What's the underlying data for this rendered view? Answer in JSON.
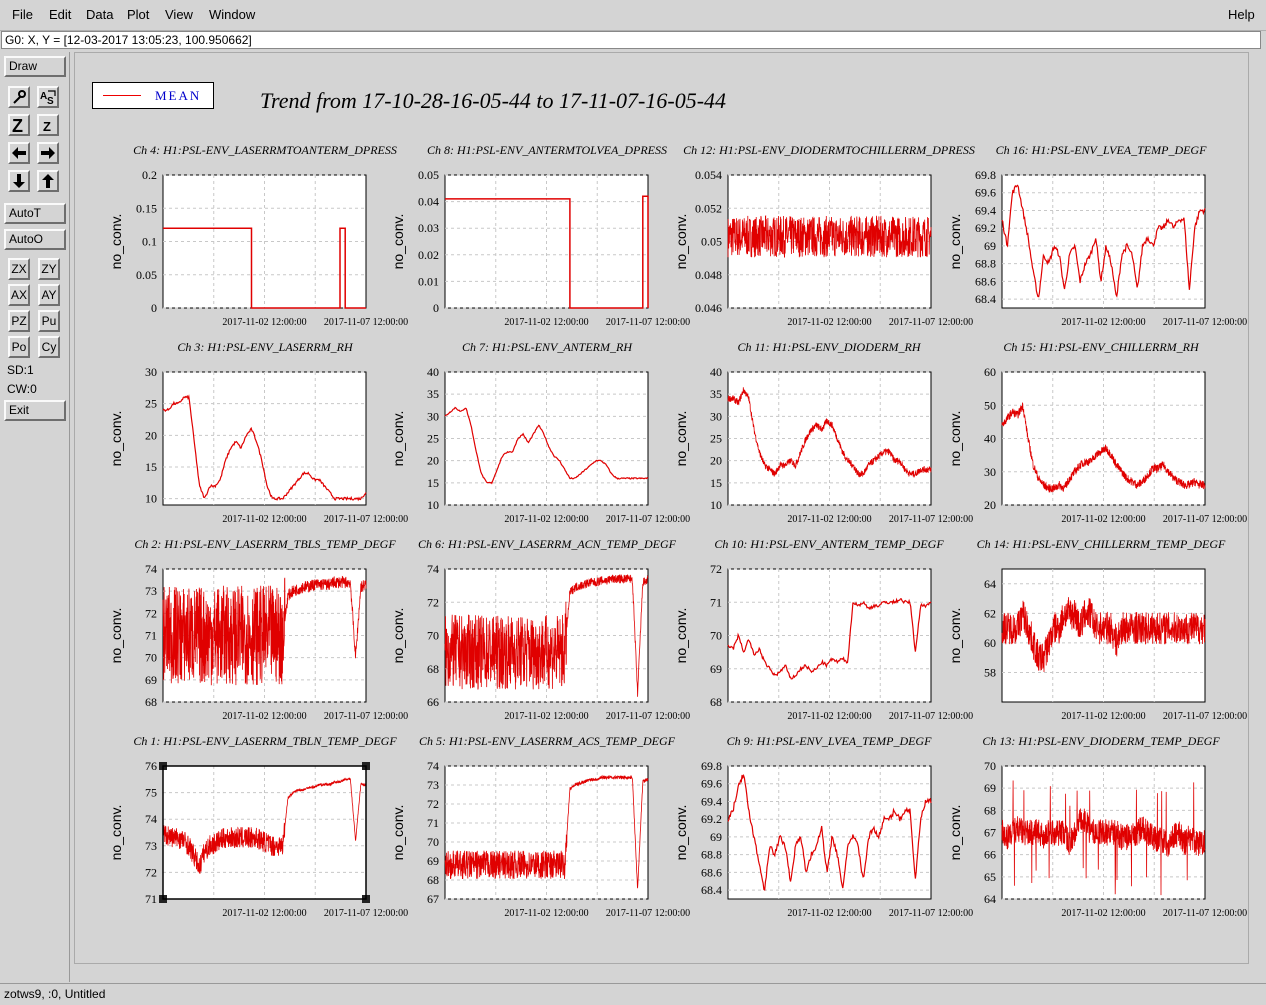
{
  "menu": {
    "items": [
      "File",
      "Edit",
      "Data",
      "Plot",
      "View",
      "Window"
    ],
    "help": "Help"
  },
  "coord_readout": "G0: X, Y = [12-03-2017 13:05:23, 100.950662]",
  "toolbar": {
    "draw": "Draw",
    "autot": "AutoT",
    "autoo": "AutoO",
    "zx": "ZX",
    "zy": "ZY",
    "ax": "AX",
    "ay": "AY",
    "pz": "PZ",
    "pu": "Pu",
    "po": "Po",
    "cy": "Cy",
    "sd": "SD:1",
    "cw": "CW:0",
    "exit": "Exit",
    "icons": [
      "zoom-tool-icon",
      "autoscale-text-icon",
      "zoom-z-icon",
      "zoom-z-small-icon",
      "arrow-left-icon",
      "arrow-right-icon",
      "arrow-down-icon",
      "arrow-up-icon"
    ]
  },
  "legend": {
    "label": "MEAN",
    "color": "#e00000"
  },
  "title": "Trend from 17-10-28-16-05-44 to 17-11-07-16-05-44",
  "status": "zotws9, :0, Untitled",
  "chart_data": [
    {
      "type": "line",
      "title": "Ch 4: H1:PSL-ENV_LASERRMTOANTERM_DPRESS",
      "ylabel": "no_conv.",
      "yticks": [
        "0",
        "0.05",
        "0.1",
        "0.15",
        "0.2"
      ],
      "ylim": [
        0,
        0.2
      ],
      "xticks": [
        "2017-11-02 12:00:00",
        "2017-11-07 12:00:00"
      ],
      "style": "step",
      "profile": [
        0.12,
        0.12,
        0.12,
        0.12,
        0.12,
        0.12,
        0.12,
        0.12,
        0.12,
        0.12,
        0.12,
        0.12,
        0.12,
        0.12,
        0.12,
        0.12,
        0.12,
        0,
        0,
        0,
        0,
        0,
        0,
        0,
        0,
        0,
        0,
        0,
        0,
        0,
        0,
        0,
        0,
        0,
        0.12,
        0,
        0,
        0,
        0,
        0
      ]
    },
    {
      "type": "line",
      "title": "Ch 8: H1:PSL-ENV_ANTERMTOLVEA_DPRESS",
      "ylabel": "no_conv.",
      "yticks": [
        "0",
        "0.01",
        "0.02",
        "0.03",
        "0.04",
        "0.05"
      ],
      "ylim": [
        0,
        0.05
      ],
      "xticks": [
        "2017-11-02 12:00:00",
        "2017-11-07 12:00:00"
      ],
      "style": "step",
      "profile": [
        0.041,
        0.041,
        0.041,
        0.041,
        0.041,
        0.041,
        0.041,
        0.041,
        0.041,
        0.041,
        0.041,
        0.041,
        0.041,
        0.041,
        0.041,
        0.041,
        0.041,
        0.041,
        0.041,
        0.041,
        0.041,
        0.041,
        0.041,
        0.041,
        0,
        0,
        0,
        0,
        0,
        0,
        0,
        0,
        0,
        0,
        0,
        0,
        0,
        0,
        0.042,
        0
      ]
    },
    {
      "type": "line",
      "title": "Ch 12: H1:PSL-ENV_DIODERMTOCHILLERRM_DPRESS",
      "ylabel": "no_conv.",
      "yticks": [
        "0.046",
        "0.048",
        "0.05",
        "0.052",
        "0.054"
      ],
      "ylim": [
        0.046,
        0.054
      ],
      "xticks": [
        "2017-11-02 12:00:00",
        "2017-11-07 12:00:00"
      ],
      "style": "noisy",
      "noise": 0.0025,
      "profile": [
        0.0503,
        0.0503,
        0.0503,
        0.0503,
        0.0503,
        0.0503,
        0.0503,
        0.0503,
        0.0503,
        0.0503,
        0.0503,
        0.0503,
        0.0503,
        0.0503,
        0.0503,
        0.0503,
        0.0503,
        0.0503,
        0.0503,
        0.0503,
        0.0503,
        0.0503,
        0.0503,
        0.0503,
        0.0503,
        0.0503,
        0.0503,
        0.0503,
        0.0503,
        0.0503,
        0.0503,
        0.0503,
        0.0503,
        0.0503,
        0.0503,
        0.0503,
        0.0503,
        0.0503,
        0.0503,
        0.0503
      ]
    },
    {
      "type": "line",
      "title": "Ch 16: H1:PSL-ENV_LVEA_TEMP_DEGF",
      "ylabel": "no_conv.",
      "yticks": [
        "68.4",
        "68.6",
        "68.8",
        "69",
        "69.2",
        "69.4",
        "69.6",
        "69.8"
      ],
      "ylim": [
        68.3,
        69.8
      ],
      "xticks": [
        "2017-11-02 12:00:00",
        "2017-11-07 12:00:00"
      ],
      "style": "line",
      "noise": 0.06,
      "profile": [
        69.3,
        69.0,
        69.6,
        69.7,
        69.4,
        69.1,
        68.7,
        68.4,
        68.9,
        68.8,
        69.0,
        68.9,
        68.5,
        68.9,
        69.0,
        68.6,
        68.8,
        68.9,
        69.1,
        68.6,
        69.0,
        68.8,
        68.4,
        68.9,
        69.0,
        68.9,
        68.5,
        69.0,
        69.1,
        69.0,
        69.2,
        69.2,
        69.3,
        69.2,
        69.3,
        69.3,
        68.5,
        69.2,
        69.4,
        69.4
      ]
    },
    {
      "type": "line",
      "title": "Ch 3: H1:PSL-ENV_LASERRM_RH",
      "ylabel": "no_conv.",
      "yticks": [
        "10",
        "15",
        "20",
        "25",
        "30"
      ],
      "ylim": [
        9,
        30
      ],
      "xticks": [
        "2017-11-02 12:00:00",
        "2017-11-07 12:00:00"
      ],
      "style": "line",
      "noise": 0.4,
      "profile": [
        24,
        24,
        25,
        25,
        26,
        26,
        19,
        12,
        10,
        12,
        12,
        13,
        16,
        18,
        19,
        18,
        20,
        21,
        19,
        16,
        12,
        10,
        10,
        10,
        11,
        12,
        13,
        14,
        14,
        13,
        13,
        12,
        11,
        10,
        10,
        10,
        10,
        10,
        10,
        11
      ]
    },
    {
      "type": "line",
      "title": "Ch 7: H1:PSL-ENV_ANTERM_RH",
      "ylabel": "no_conv.",
      "yticks": [
        "10",
        "15",
        "20",
        "25",
        "30",
        "35",
        "40"
      ],
      "ylim": [
        10,
        40
      ],
      "xticks": [
        "2017-11-02 12:00:00",
        "2017-11-07 12:00:00"
      ],
      "style": "line",
      "noise": 0.3,
      "profile": [
        30,
        31,
        32,
        31,
        32,
        28,
        22,
        17,
        15,
        15,
        18,
        21,
        22,
        22,
        25,
        26,
        24,
        26,
        28,
        26,
        23,
        21,
        20,
        18,
        16,
        16,
        17,
        18,
        19,
        20,
        20,
        19,
        17,
        16,
        16,
        16,
        16,
        16,
        16,
        16
      ]
    },
    {
      "type": "line",
      "title": "Ch 11: H1:PSL-ENV_DIODERM_RH",
      "ylabel": "no_conv.",
      "yticks": [
        "10",
        "15",
        "20",
        "25",
        "30",
        "35",
        "40"
      ],
      "ylim": [
        10,
        40
      ],
      "xticks": [
        "2017-11-02 12:00:00",
        "2017-11-07 12:00:00"
      ],
      "style": "noisy",
      "noise": 1.5,
      "profile": [
        34,
        34,
        33,
        36,
        34,
        27,
        22,
        19,
        18,
        17,
        19,
        19,
        20,
        19,
        22,
        25,
        27,
        28,
        27,
        29,
        28,
        25,
        22,
        20,
        19,
        17,
        17,
        19,
        20,
        21,
        22,
        22,
        20,
        20,
        18,
        17,
        17,
        18,
        18,
        18
      ]
    },
    {
      "type": "line",
      "title": "Ch 15: H1:PSL-ENV_CHILLERRM_RH",
      "ylabel": "no_conv.",
      "yticks": [
        "20",
        "30",
        "40",
        "50",
        "60"
      ],
      "ylim": [
        20,
        60
      ],
      "xticks": [
        "2017-11-02 12:00:00",
        "2017-11-07 12:00:00"
      ],
      "style": "noisy",
      "noise": 2.5,
      "profile": [
        44,
        46,
        48,
        47,
        50,
        40,
        32,
        28,
        26,
        25,
        25,
        26,
        25,
        28,
        30,
        32,
        33,
        33,
        35,
        36,
        37,
        35,
        32,
        30,
        28,
        27,
        26,
        27,
        29,
        31,
        31,
        32,
        30,
        28,
        27,
        26,
        26,
        27,
        26,
        26
      ]
    },
    {
      "type": "line",
      "title": "Ch 2: H1:PSL-ENV_LASERRM_TBLS_TEMP_DEGF",
      "ylabel": "no_conv.",
      "yticks": [
        "68",
        "69",
        "70",
        "71",
        "72",
        "73",
        "74"
      ],
      "ylim": [
        68,
        74
      ],
      "xticks": [
        "2017-11-02 12:00:00",
        "2017-11-07 12:00:00"
      ],
      "style": "band",
      "noise": 4.5,
      "bandEnd": 0.6,
      "profile": [
        71,
        71,
        71,
        71,
        71,
        71,
        71,
        71,
        71,
        71,
        71,
        71,
        71,
        71,
        71,
        71,
        71,
        71,
        71,
        71,
        71,
        71,
        71,
        71,
        72.8,
        73.0,
        73.1,
        73.2,
        73.2,
        73.3,
        73.3,
        73.3,
        73.3,
        73.4,
        73.4,
        73.4,
        73.4,
        70,
        73.2,
        73.3
      ]
    },
    {
      "type": "line",
      "title": "Ch 6: H1:PSL-ENV_LASERRM_ACN_TEMP_DEGF",
      "ylabel": "no_conv.",
      "yticks": [
        "66",
        "68",
        "70",
        "72",
        "74"
      ],
      "ylim": [
        66,
        74
      ],
      "xticks": [
        "2017-11-02 12:00:00",
        "2017-11-07 12:00:00"
      ],
      "style": "band",
      "noise": 4.5,
      "bandEnd": 0.6,
      "profile": [
        69,
        69,
        69,
        69,
        69,
        69,
        69,
        69,
        69,
        69,
        69,
        69,
        69,
        69,
        69,
        69,
        69,
        69,
        69,
        69,
        69,
        69,
        69,
        69,
        72.6,
        72.9,
        73.0,
        73.1,
        73.2,
        73.2,
        73.3,
        73.3,
        73.4,
        73.4,
        73.4,
        73.4,
        73.4,
        66.5,
        73.2,
        73.3
      ]
    },
    {
      "type": "line",
      "title": "Ch 10: H1:PSL-ENV_ANTERM_TEMP_DEGF",
      "ylabel": "no_conv.",
      "yticks": [
        "68",
        "69",
        "70",
        "71",
        "72"
      ],
      "ylim": [
        68,
        72
      ],
      "xticks": [
        "2017-11-02 12:00:00",
        "2017-11-07 12:00:00"
      ],
      "style": "line",
      "noise": 0.1,
      "profile": [
        69.7,
        69.6,
        70.0,
        69.5,
        69.9,
        69.4,
        69.6,
        69.2,
        69.0,
        68.8,
        68.9,
        69.1,
        68.7,
        68.8,
        69.0,
        69.1,
        68.9,
        69.0,
        69.2,
        69.1,
        69.3,
        69.2,
        69.3,
        69.2,
        71.0,
        70.9,
        71.0,
        70.8,
        70.9,
        70.9,
        71.0,
        71.0,
        71.0,
        71.1,
        71.0,
        71.0,
        69.5,
        70.9,
        70.9,
        71.0
      ]
    },
    {
      "type": "line",
      "title": "Ch 14: H1:PSL-ENV_CHILLERRM_TEMP_DEGF",
      "ylabel": "no_conv.",
      "yticks": [
        "58",
        "60",
        "62",
        "64"
      ],
      "ylim": [
        56,
        65
      ],
      "xticks": [
        "2017-11-02 12:00:00",
        "2017-11-07 12:00:00"
      ],
      "style": "noisy",
      "noise": 2.2,
      "profile": [
        61,
        61,
        61,
        61,
        62,
        61,
        60,
        59,
        59,
        60,
        61,
        61,
        62,
        62,
        62,
        61,
        62,
        62,
        61,
        61,
        61,
        61,
        60,
        61,
        61,
        61,
        61,
        61,
        61,
        61,
        61,
        61,
        61,
        61,
        61,
        61,
        61,
        61,
        61,
        61
      ]
    },
    {
      "type": "line",
      "title": "Ch 1: H1:PSL-ENV_LASERRM_TBLN_TEMP_DEGF",
      "ylabel": "no_conv.",
      "yticks": [
        "71",
        "72",
        "73",
        "74",
        "75",
        "76"
      ],
      "ylim": [
        71,
        76
      ],
      "xticks": [
        "2017-11-02 12:00:00",
        "2017-11-07 12:00:00"
      ],
      "style": "noisy",
      "noise": 0.8,
      "bandEnd": 0.6,
      "profile": [
        73.4,
        73.4,
        73.3,
        73.3,
        73.2,
        73.0,
        72.6,
        72.2,
        72.8,
        73.0,
        73.1,
        73.2,
        73.3,
        73.3,
        73.3,
        73.3,
        73.3,
        73.3,
        73.3,
        73.2,
        73.1,
        73.0,
        73.0,
        73.0,
        74.8,
        75.0,
        75.1,
        75.1,
        75.2,
        75.2,
        75.3,
        75.3,
        75.3,
        75.4,
        75.4,
        75.5,
        75.5,
        73.2,
        75.3,
        75.3
      ]
    },
    {
      "type": "line",
      "title": "Ch 5: H1:PSL-ENV_LASERRM_ACS_TEMP_DEGF",
      "ylabel": "no_conv.",
      "yticks": [
        "67",
        "68",
        "69",
        "70",
        "71",
        "72",
        "73",
        "74"
      ],
      "ylim": [
        67,
        74
      ],
      "xticks": [
        "2017-11-02 12:00:00",
        "2017-11-07 12:00:00"
      ],
      "style": "noisy",
      "noise": 1.5,
      "bandEnd": 0.6,
      "profile": [
        68.8,
        68.8,
        68.8,
        68.8,
        68.8,
        68.8,
        68.8,
        68.8,
        68.8,
        68.8,
        68.8,
        68.8,
        68.8,
        68.8,
        68.8,
        68.8,
        68.8,
        68.8,
        68.8,
        68.8,
        68.8,
        68.8,
        68.8,
        68.8,
        72.8,
        73.0,
        73.1,
        73.2,
        73.3,
        73.3,
        73.4,
        73.4,
        73.4,
        73.4,
        73.4,
        73.4,
        73.4,
        67.5,
        73.2,
        73.3
      ]
    },
    {
      "type": "line",
      "title": "Ch 9: H1:PSL-ENV_LVEA_TEMP_DEGF",
      "ylabel": "no_conv.",
      "yticks": [
        "68.4",
        "68.6",
        "68.8",
        "69",
        "69.2",
        "69.4",
        "69.6",
        "69.8"
      ],
      "ylim": [
        68.3,
        69.8
      ],
      "xticks": [
        "2017-11-02 12:00:00",
        "2017-11-07 12:00:00"
      ],
      "style": "line",
      "noise": 0.06,
      "profile": [
        69.2,
        69.3,
        69.6,
        69.7,
        69.3,
        69.0,
        68.7,
        68.4,
        68.9,
        68.8,
        69.0,
        68.9,
        68.5,
        68.9,
        69.0,
        68.6,
        68.8,
        68.9,
        69.1,
        68.6,
        69.0,
        68.8,
        68.4,
        68.9,
        69.0,
        68.9,
        68.5,
        69.0,
        69.1,
        69.0,
        69.2,
        69.2,
        69.3,
        69.2,
        69.3,
        69.3,
        68.5,
        69.2,
        69.4,
        69.4
      ]
    },
    {
      "type": "line",
      "title": "Ch 13: H1:PSL-ENV_DIODERM_TEMP_DEGF",
      "ylabel": "no_conv.",
      "yticks": [
        "64",
        "65",
        "66",
        "67",
        "68",
        "69",
        "70"
      ],
      "ylim": [
        64,
        70
      ],
      "xticks": [
        "2017-11-02 12:00:00",
        "2017-11-07 12:00:00"
      ],
      "style": "noisy",
      "noise": 1.2,
      "spikes": true,
      "profile": [
        67,
        66.8,
        67,
        67.2,
        67,
        67,
        67,
        67,
        66.8,
        67,
        67,
        67,
        67,
        66.5,
        67,
        67.5,
        67.5,
        67,
        67,
        67,
        67,
        67,
        67,
        66.8,
        66.8,
        66.8,
        67,
        67.2,
        67,
        66.8,
        66.7,
        66.6,
        66.5,
        66.8,
        67,
        66.5,
        66.8,
        66.6,
        66.5,
        66.7
      ]
    }
  ]
}
